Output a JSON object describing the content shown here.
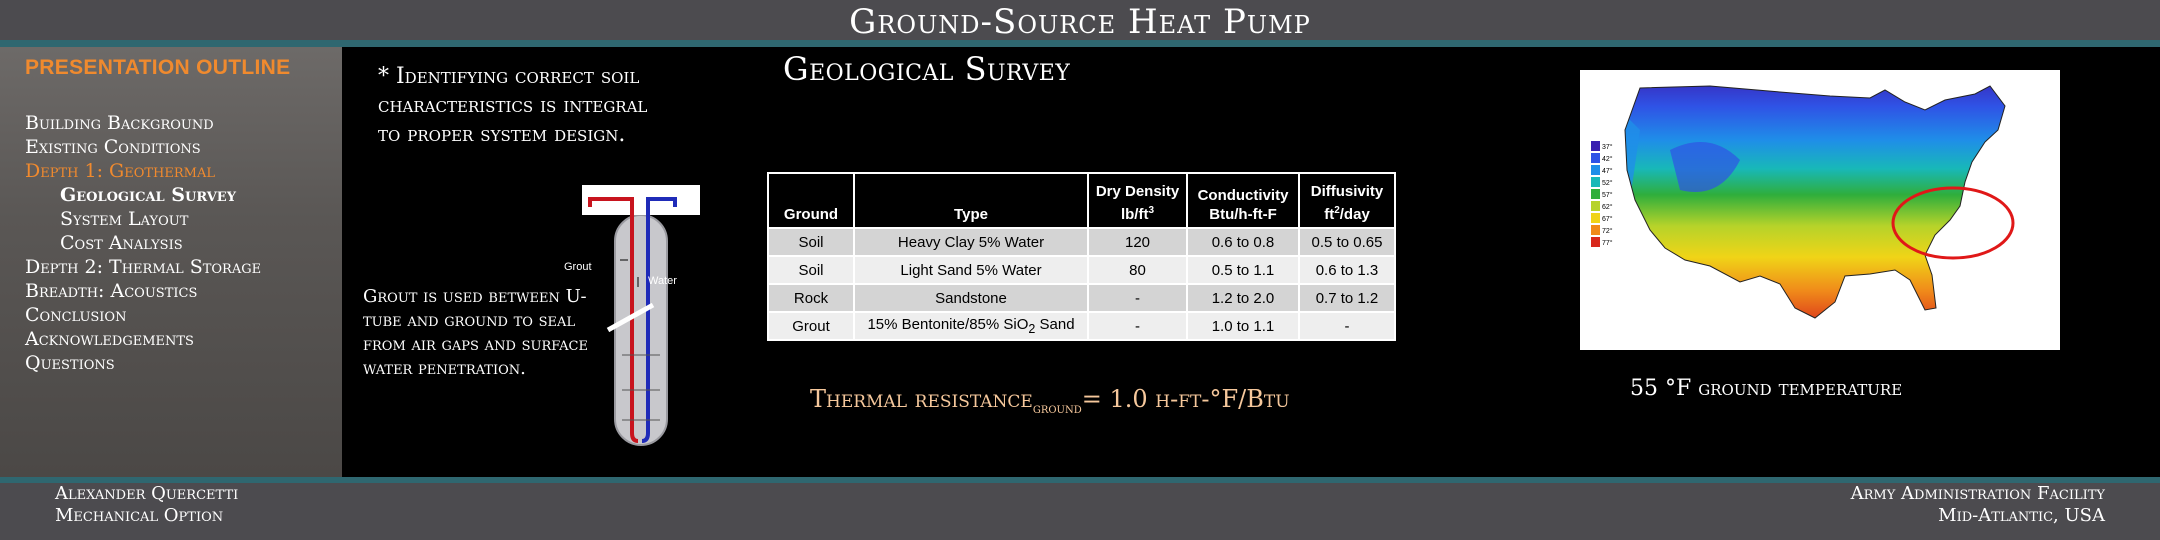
{
  "header": {
    "title": "Ground-Source Heat Pump"
  },
  "sidebar": {
    "heading": "PRESENTATION OUTLINE",
    "items": [
      {
        "label": "Building Background",
        "level": 0,
        "state": "normal"
      },
      {
        "label": "Existing Conditions",
        "level": 0,
        "state": "normal"
      },
      {
        "label": "Depth 1: Geothermal",
        "level": 0,
        "state": "active"
      },
      {
        "label": "Geological Survey",
        "level": 1,
        "state": "current"
      },
      {
        "label": "System Layout",
        "level": 1,
        "state": "normal"
      },
      {
        "label": "Cost Analysis",
        "level": 1,
        "state": "normal"
      },
      {
        "label": "Depth 2: Thermal Storage",
        "level": 0,
        "state": "normal"
      },
      {
        "label": "Breadth: Acoustics",
        "level": 0,
        "state": "normal"
      },
      {
        "label": "Conclusion",
        "level": 0,
        "state": "normal"
      },
      {
        "label": "Acknowledgements",
        "level": 0,
        "state": "normal"
      },
      {
        "label": "Questions",
        "level": 0,
        "state": "normal"
      }
    ]
  },
  "main": {
    "intro": "* Identifying correct soil characteristics is integral to proper system design.",
    "survey_title": "Geological Survey",
    "grout_note": "Grout is used between U-tube and ground to seal from air gaps and surface water penetration.",
    "diagram": {
      "grout_label": "Grout",
      "water_label": "Water"
    },
    "table": {
      "headers": {
        "ground": "Ground",
        "type": "Type",
        "density_line1": "Dry Density",
        "density_unit": "lb/ft",
        "density_exp": "3",
        "conductivity_line1": "Conductivity",
        "conductivity_unit": "Btu/h-ft-F",
        "diffusivity_line1": "Diffusivity",
        "diffusivity_unit_a": "ft",
        "diffusivity_exp": "2",
        "diffusivity_unit_b": "/day"
      },
      "rows": [
        {
          "ground": "Soil",
          "type": "Heavy Clay 5% Water",
          "density": "120",
          "conductivity": "0.6 to 0.8",
          "diffusivity": "0.5 to 0.65"
        },
        {
          "ground": "Soil",
          "type": "Light Sand 5% Water",
          "density": "80",
          "conductivity": "0.5 to 1.1",
          "diffusivity": "0.6 to 1.3"
        },
        {
          "ground": "Rock",
          "type": "Sandstone",
          "density": "-",
          "conductivity": "1.2 to 2.0",
          "diffusivity": "0.7 to 1.2"
        },
        {
          "ground": "Grout",
          "type": "15% Bentonite/85% SiO",
          "type_sub": "2",
          "type_suffix": " Sand",
          "density": "-",
          "conductivity": "1.0 to 1.1",
          "diffusivity": "-"
        }
      ]
    },
    "thermal_resistance": {
      "prefix": "Thermal resistance",
      "subscript": "ground",
      "suffix": "= 1.0 h-ft-°F/Btu"
    },
    "map": {
      "legend": [
        {
          "label": "37°",
          "color": "#3a1fb0"
        },
        {
          "label": "42°",
          "color": "#2f53e6"
        },
        {
          "label": "47°",
          "color": "#1f8ee8"
        },
        {
          "label": "52°",
          "color": "#18b8b8"
        },
        {
          "label": "57°",
          "color": "#2fae3c"
        },
        {
          "label": "62°",
          "color": "#b6d32a"
        },
        {
          "label": "67°",
          "color": "#f0d417"
        },
        {
          "label": "72°",
          "color": "#f08a1a"
        },
        {
          "label": "77°",
          "color": "#d8281c"
        }
      ]
    },
    "ground_temp": "55 °F ground temperature"
  },
  "footer": {
    "left_line1": "Alexander Quercetti",
    "left_line2": "Mechanical Option",
    "right_line1": "Army Administration Facility",
    "right_line2": "Mid-Atlantic, USA"
  }
}
